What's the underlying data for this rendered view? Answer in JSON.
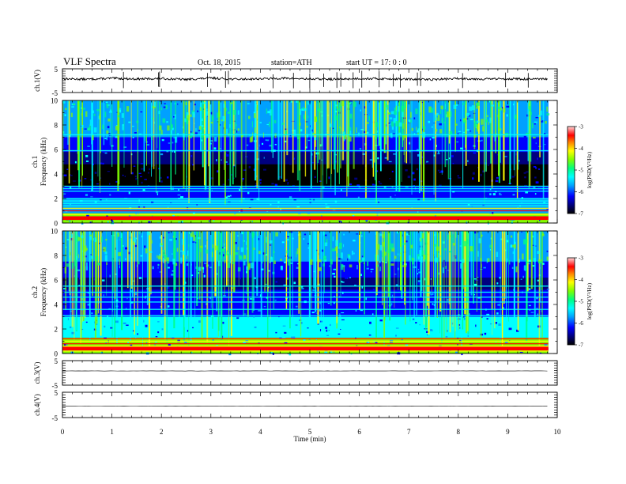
{
  "header": {
    "title": "VLF  Spectra",
    "date": "Oct. 18, 2015",
    "station": "station=ATH",
    "start": "start  UT =   17: 0  : 0"
  },
  "chart_data": [
    {
      "type": "line",
      "panel": "ch1-waveform",
      "ylabel": "ch.1(V)",
      "ylim": [
        -5,
        5
      ],
      "yticks": [
        "5",
        "-5"
      ],
      "x": [
        0,
        0.5,
        1,
        1.5,
        2,
        2.5,
        3,
        3.5,
        4,
        4.5,
        5,
        5.5,
        6,
        6.5,
        7,
        7.5,
        8,
        8.5,
        9,
        9.5,
        9.8
      ],
      "y": [
        0.8,
        0.6,
        1.0,
        0.7,
        0.9,
        0.5,
        1.1,
        0.6,
        0.8,
        1.0,
        0.7,
        0.6,
        0.9,
        0.8,
        0.6,
        0.5,
        0.9,
        0.7,
        0.8,
        0.6,
        0.7
      ]
    },
    {
      "type": "heatmap",
      "panel": "ch1-spectrogram",
      "ylabel": "ch.1\nFrequency (kHz)",
      "ylabel_line1": "ch.1",
      "ylabel_line2": "Frequency (kHz)",
      "ylim": [
        0,
        10
      ],
      "yticks": [
        "0",
        "2",
        "4",
        "6",
        "8",
        "10"
      ],
      "colorbar": {
        "label": "log(PSD(V²/Hz)",
        "ticks": [
          "-3",
          "-4",
          "-5",
          "-6",
          "-7"
        ],
        "range": [
          -7,
          -3
        ]
      },
      "tone_lines_khz": [
        0.3,
        0.5,
        0.7,
        1.0,
        1.2,
        1.4,
        1.6,
        1.8,
        2.0,
        2.6,
        2.8,
        3.0,
        5.9,
        7.2
      ]
    },
    {
      "type": "heatmap",
      "panel": "ch2-spectrogram",
      "ylabel": "ch.2\nFrequency (kHz)",
      "ylabel_line1": "ch.2",
      "ylabel_line2": "Frequency (kHz)",
      "ylim": [
        0,
        10
      ],
      "yticks": [
        "0",
        "2",
        "4",
        "6",
        "8",
        "10"
      ],
      "colorbar": {
        "label": "log(PSD(V²/Hz)",
        "ticks": [
          "-3",
          "-4",
          "-5",
          "-6",
          "-7"
        ],
        "range": [
          -7,
          -3
        ]
      },
      "tone_lines_khz": [
        0.2,
        0.4,
        0.6,
        0.8,
        1.0,
        1.2,
        3.1,
        3.6,
        4.2,
        4.6,
        5.0,
        5.5
      ]
    },
    {
      "type": "line",
      "panel": "ch3-waveform",
      "ylabel": "ch.3(V)",
      "ylim": [
        -5,
        5
      ],
      "yticks": [
        "5",
        "-5"
      ],
      "x": [
        0,
        9.8
      ],
      "y": [
        0.8,
        0.8
      ]
    },
    {
      "type": "line",
      "panel": "ch4-waveform",
      "ylabel": "ch.4(V)",
      "ylim": [
        -5,
        5
      ],
      "yticks": [
        "5",
        "-5"
      ],
      "x": [
        0,
        9.8
      ],
      "y": [
        -0.5,
        -0.5
      ]
    }
  ],
  "xaxis": {
    "label": "Time  (min)",
    "range": [
      0,
      10
    ],
    "ticks": [
      "0",
      "1",
      "2",
      "3",
      "4",
      "5",
      "6",
      "7",
      "8",
      "9",
      "10"
    ]
  },
  "colors": {
    "colormap": [
      "#000000",
      "#00007f",
      "#0000ff",
      "#00a0ff",
      "#00ffff",
      "#00ff80",
      "#80ff00",
      "#ffff00",
      "#ff8000",
      "#ff0000",
      "#ffd0d0"
    ]
  }
}
